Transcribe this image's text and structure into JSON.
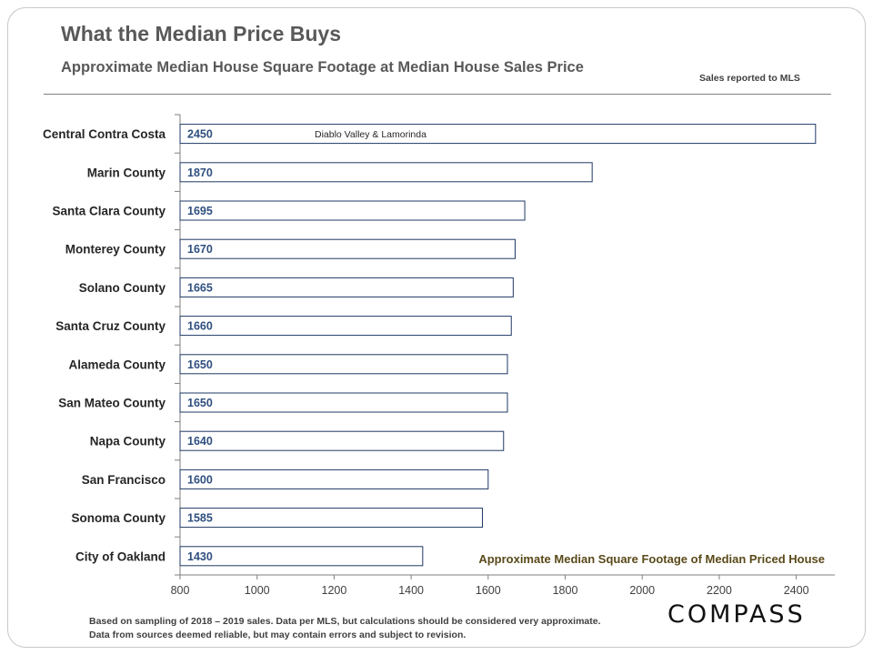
{
  "title": "What the Median Price Buys",
  "subtitle": "Approximate Median House Square Footage at Median House Sales Price",
  "source_note": "Sales reported to MLS",
  "footnote": "Based on sampling of 2018 – 2019 sales. Data per MLS, but calculations  should be considered very approximate. Data from sources deemed reliable, but may contain errors and subject to revision.",
  "logo": "COMPASS",
  "chart_data": {
    "type": "bar",
    "orientation": "horizontal",
    "categories": [
      "Central Contra Costa",
      "Marin County",
      "Santa Clara County",
      "Monterey County",
      "Solano County",
      "Santa Cruz County",
      "Alameda County",
      "San Mateo County",
      "Napa County",
      "San Francisco",
      "Sonoma County",
      "City of Oakland"
    ],
    "values": [
      2450,
      1870,
      1695,
      1670,
      1665,
      1660,
      1650,
      1650,
      1640,
      1600,
      1585,
      1430
    ],
    "xlim": [
      800,
      2500
    ],
    "xticks": [
      800,
      1000,
      1200,
      1400,
      1600,
      1800,
      2000,
      2200,
      2400
    ],
    "xlabel": "Approximate Median Square Footage of Median Priced House",
    "annotations": [
      {
        "category": "Central Contra Costa",
        "text": "Diablo Valley & Lamorinda"
      }
    ],
    "grid": false,
    "bar_fill": "#ffffff",
    "bar_stroke": "#1f3864",
    "value_label_color": "#2f4f7f"
  }
}
